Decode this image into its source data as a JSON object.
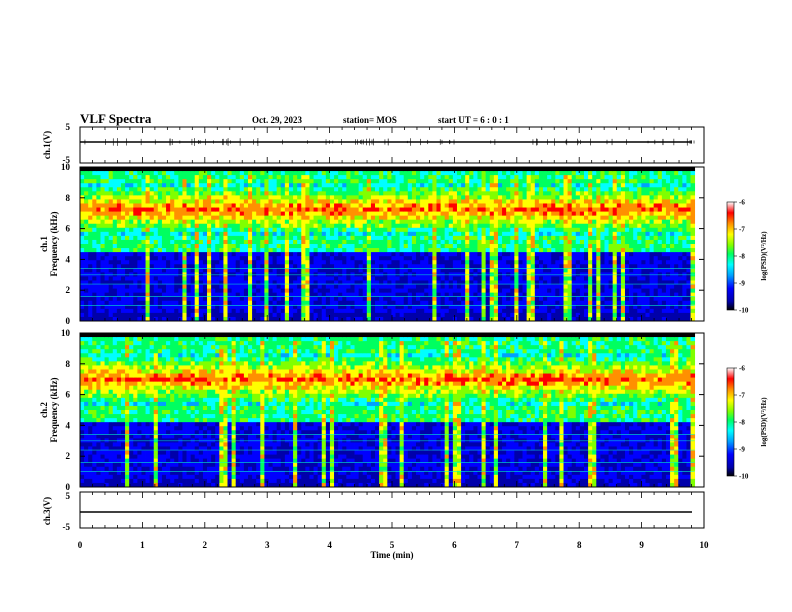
{
  "header": {
    "title": "VLF Spectra",
    "date": "Oct. 29, 2023",
    "station": "station= MOS",
    "start_time": "start  UT =   6 : 0  : 1"
  },
  "chart_data": {
    "type": "heatmap",
    "x_axis": {
      "label": "Time  (min)",
      "range": [
        0,
        10
      ],
      "ticks": [
        "0",
        "1",
        "2",
        "3",
        "4",
        "5",
        "6",
        "7",
        "8",
        "9",
        "10"
      ]
    },
    "panels": [
      {
        "id": "ch1_waveform",
        "type": "line",
        "ylabel": "ch.1(V)",
        "ylim": [
          -5,
          5
        ],
        "ticks": [
          "5",
          "-5"
        ],
        "baseline_value": 0
      },
      {
        "id": "ch1_spectrogram",
        "type": "heatmap",
        "ylabel_line1": "ch.1",
        "ylabel_line2": "Frequency  (kHz)",
        "ylim": [
          0,
          10
        ],
        "ticks": [
          "0",
          "2",
          "4",
          "6",
          "8",
          "10"
        ],
        "band_center_khz": 7.5,
        "data_end_min": 9.85
      },
      {
        "id": "ch2_spectrogram",
        "type": "heatmap",
        "ylabel_line1": "ch.2",
        "ylabel_line2": "Frequency  (kHz)",
        "ylim": [
          0,
          10
        ],
        "ticks": [
          "0",
          "2",
          "4",
          "6",
          "8",
          "10"
        ],
        "band_center_khz": 7.0,
        "data_end_min": 9.85
      },
      {
        "id": "ch3_waveform",
        "type": "line",
        "ylabel": "ch.3(V)",
        "ylim": [
          -5,
          5
        ],
        "ticks": [
          "5",
          "-5"
        ],
        "baseline_value": 0
      }
    ],
    "colorbar": {
      "label": "log(PSD)(V²/Hz)",
      "range": [
        -10,
        -6
      ],
      "ticks": [
        "-6",
        "-7",
        "-8",
        "-9",
        "-10"
      ],
      "colormap": [
        "#000000",
        "#0000aa",
        "#0000ff",
        "#00a0ff",
        "#00ffff",
        "#00ff60",
        "#80ff00",
        "#ffff00",
        "#ff9000",
        "#ff0000",
        "#ffffff"
      ]
    }
  }
}
